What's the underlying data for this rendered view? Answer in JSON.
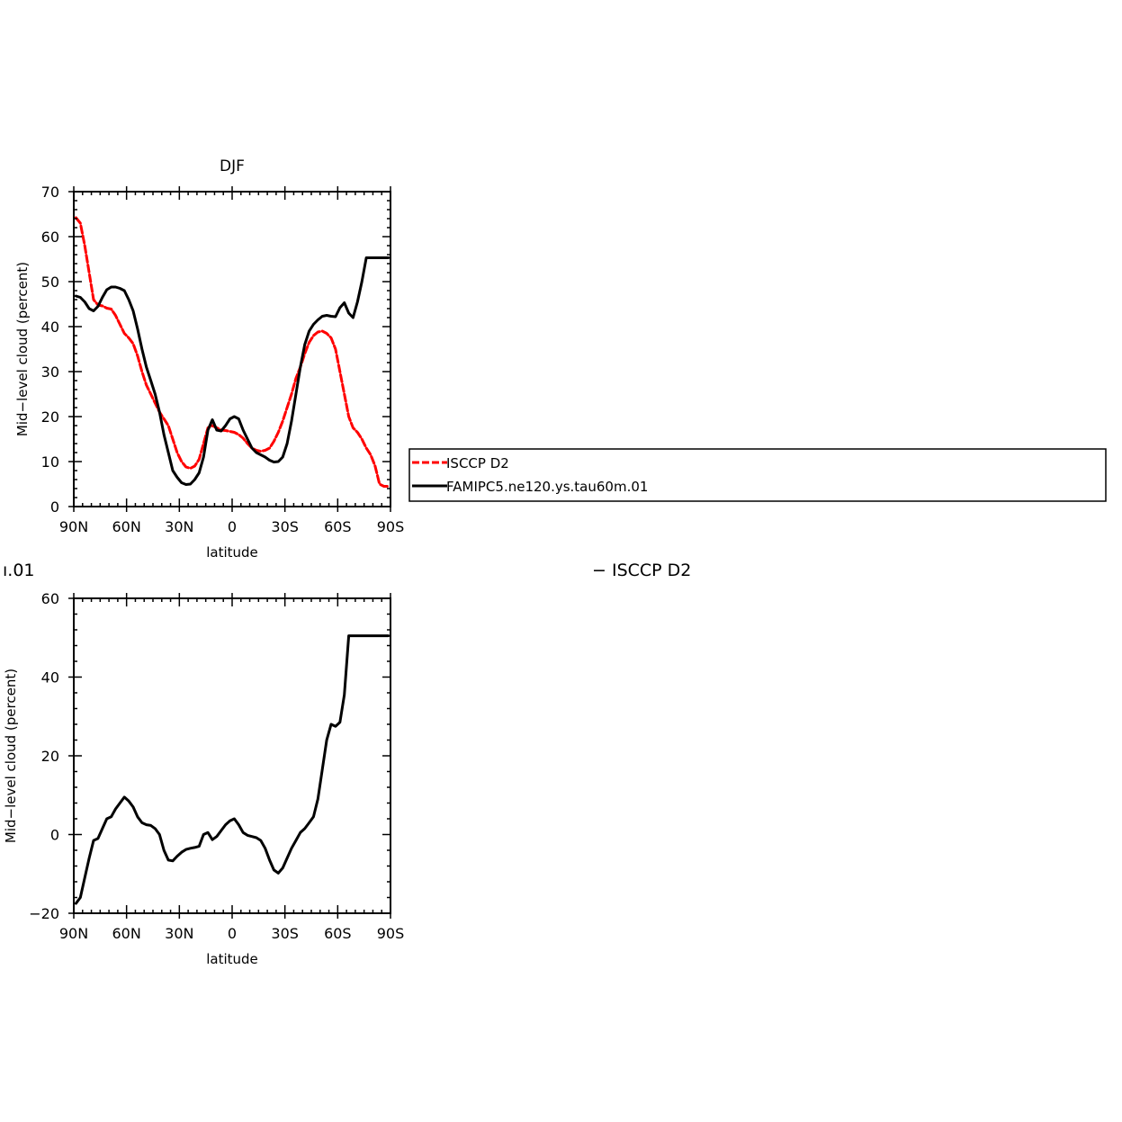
{
  "colors": {
    "model": "#000000",
    "obs": "#ff0000",
    "frame": "#000000"
  },
  "x_ticks": [
    "90N",
    "60N",
    "30N",
    "0",
    "30S",
    "60S",
    "90S"
  ],
  "captions": {
    "left_fragment": "ı.01",
    "right_fragment": "− ISCCP D2"
  },
  "chart_data": [
    {
      "type": "line",
      "title": "DJF",
      "xlabel": "latitude",
      "ylabel": "Mid−level cloud (percent)",
      "xlim": [
        90,
        -90
      ],
      "ylim": [
        0,
        70
      ],
      "y_major_ticks": [
        0,
        10,
        20,
        30,
        40,
        50,
        60,
        70
      ],
      "x_tick_values": [
        90,
        60,
        30,
        0,
        -30,
        -60,
        -90
      ],
      "legend": {
        "placement": "right-outside"
      },
      "series": [
        {
          "name": "ISCCP D2",
          "style": "dashed",
          "color": "#ff0000",
          "x": [
            88.75,
            86.25,
            83.75,
            81.25,
            78.75,
            76.25,
            73.75,
            71.25,
            68.75,
            66.25,
            63.75,
            61.25,
            58.75,
            56.25,
            53.75,
            51.25,
            48.75,
            46.25,
            43.75,
            41.25,
            38.75,
            36.25,
            33.75,
            31.25,
            28.75,
            26.25,
            23.75,
            21.25,
            18.75,
            16.25,
            13.75,
            11.25,
            8.75,
            6.25,
            3.75,
            1.25,
            -1.25,
            -3.75,
            -6.25,
            -8.75,
            -11.25,
            -13.75,
            -16.25,
            -18.75,
            -21.25,
            -23.75,
            -26.25,
            -28.75,
            -31.25,
            -33.75,
            -36.25,
            -38.75,
            -41.25,
            -43.75,
            -46.25,
            -48.75,
            -51.25,
            -53.75,
            -56.25,
            -58.75,
            -61.25,
            -63.75,
            -66.25,
            -68.75,
            -71.25,
            -73.75,
            -76.25,
            -78.75,
            -81.25,
            -83.75,
            -86.25,
            -88.75
          ],
          "values": [
            64.2,
            63.0,
            58.0,
            52.0,
            46.0,
            44.8,
            44.6,
            44.1,
            43.9,
            42.5,
            40.5,
            38.5,
            37.5,
            36.2,
            33.5,
            30.0,
            27.0,
            25.0,
            23.0,
            21.0,
            19.5,
            18.0,
            15.0,
            12.0,
            10.0,
            8.8,
            8.5,
            9.0,
            10.5,
            14.0,
            17.5,
            18.0,
            17.5,
            17.0,
            16.9,
            16.7,
            16.5,
            16.0,
            15.2,
            14.0,
            13.0,
            12.5,
            12.3,
            12.5,
            13.0,
            14.5,
            16.5,
            19.0,
            22.0,
            25.0,
            28.5,
            31.0,
            34.0,
            36.5,
            38.0,
            38.8,
            39.0,
            38.5,
            37.5,
            35.0,
            30.0,
            25.0,
            20.0,
            17.5,
            16.5,
            15.0,
            13.0,
            11.5,
            9.0,
            5.0,
            4.5,
            4.5
          ]
        },
        {
          "name": "FAMIPC5.ne120.ys.tau60m.01",
          "style": "solid",
          "color": "#000000",
          "x": [
            88.75,
            86.25,
            83.75,
            81.25,
            78.75,
            76.25,
            73.75,
            71.25,
            68.75,
            66.25,
            63.75,
            61.25,
            58.75,
            56.25,
            53.75,
            51.25,
            48.75,
            46.25,
            43.75,
            41.25,
            38.75,
            36.25,
            33.75,
            31.25,
            28.75,
            26.25,
            23.75,
            21.25,
            18.75,
            16.25,
            13.75,
            11.25,
            8.75,
            6.25,
            3.75,
            1.25,
            -1.25,
            -3.75,
            -6.25,
            -8.75,
            -11.25,
            -13.75,
            -16.25,
            -18.75,
            -21.25,
            -23.75,
            -26.25,
            -28.75,
            -31.25,
            -33.75,
            -36.25,
            -38.75,
            -41.25,
            -43.75,
            -46.25,
            -48.75,
            -51.25,
            -53.75,
            -56.25,
            -58.75,
            -61.25,
            -63.75,
            -66.25,
            -68.75,
            -71.25,
            -73.75,
            -76.25,
            -78.75,
            -81.25,
            -83.75,
            -86.25,
            -88.75
          ],
          "values": [
            46.8,
            46.5,
            45.5,
            44.0,
            43.5,
            44.5,
            46.5,
            48.2,
            48.8,
            48.8,
            48.5,
            48.0,
            46.0,
            43.5,
            39.5,
            35.0,
            31.0,
            28.0,
            25.0,
            21.0,
            16.0,
            12.0,
            8.0,
            6.5,
            5.3,
            4.9,
            5.0,
            6.0,
            7.5,
            11.0,
            17.0,
            19.3,
            17.0,
            16.8,
            18.0,
            19.5,
            20.0,
            19.5,
            17.0,
            15.0,
            13.0,
            12.0,
            11.5,
            11.0,
            10.3,
            9.9,
            10.0,
            11.0,
            14.0,
            19.0,
            25.0,
            31.0,
            36.0,
            39.0,
            40.5,
            41.5,
            42.3,
            42.5,
            42.3,
            42.2,
            44.2,
            45.3,
            43.0,
            42.0,
            45.5,
            50.0,
            55.3,
            55.3,
            55.3,
            55.3,
            55.3,
            55.3
          ]
        }
      ]
    },
    {
      "type": "line",
      "title": "",
      "xlabel": "latitude",
      "ylabel": "Mid−level cloud (percent)",
      "xlim": [
        90,
        -90
      ],
      "ylim": [
        -20,
        60
      ],
      "y_major_ticks": [
        -20,
        0,
        20,
        40,
        60
      ],
      "x_tick_values": [
        90,
        60,
        30,
        0,
        -30,
        -60,
        -90
      ],
      "series": [
        {
          "style": "solid",
          "color": "#000000",
          "x": [
            88.75,
            86.25,
            83.75,
            81.25,
            78.75,
            76.25,
            73.75,
            71.25,
            68.75,
            66.25,
            63.75,
            61.25,
            58.75,
            56.25,
            53.75,
            51.25,
            48.75,
            46.25,
            43.75,
            41.25,
            38.75,
            36.25,
            33.75,
            31.25,
            28.75,
            26.25,
            23.75,
            21.25,
            18.75,
            16.25,
            13.75,
            11.25,
            8.75,
            6.25,
            3.75,
            1.25,
            -1.25,
            -3.75,
            -6.25,
            -8.75,
            -11.25,
            -13.75,
            -16.25,
            -18.75,
            -21.25,
            -23.75,
            -26.25,
            -28.75,
            -31.25,
            -33.75,
            -36.25,
            -38.75,
            -41.25,
            -43.75,
            -46.25,
            -48.75,
            -51.25,
            -53.75,
            -56.25,
            -58.75,
            -61.25,
            -63.75,
            -66.25,
            -68.75,
            -71.25,
            -73.75,
            -76.25,
            -78.75,
            -81.25,
            -83.75,
            -86.25,
            -88.75
          ],
          "values": [
            -17.5,
            -16.0,
            -11.0,
            -6.0,
            -1.5,
            -1.0,
            1.5,
            4.0,
            4.5,
            6.5,
            8.0,
            9.5,
            8.5,
            7.0,
            4.5,
            3.0,
            2.5,
            2.3,
            1.5,
            0.0,
            -4.0,
            -6.5,
            -6.7,
            -5.5,
            -4.5,
            -3.8,
            -3.5,
            -3.3,
            -3.0,
            0.0,
            0.5,
            -1.3,
            -0.5,
            1.0,
            2.5,
            3.5,
            4.0,
            2.5,
            0.5,
            -0.2,
            -0.5,
            -0.8,
            -1.5,
            -3.5,
            -6.5,
            -9.0,
            -9.8,
            -8.5,
            -6.0,
            -3.5,
            -1.5,
            0.5,
            1.5,
            3.0,
            4.5,
            9.0,
            16.5,
            24.0,
            28.0,
            27.5,
            28.5,
            35.5,
            50.5,
            50.5,
            50.5,
            50.5,
            50.5,
            50.5,
            50.5,
            50.5,
            50.5,
            50.5
          ]
        }
      ]
    }
  ]
}
